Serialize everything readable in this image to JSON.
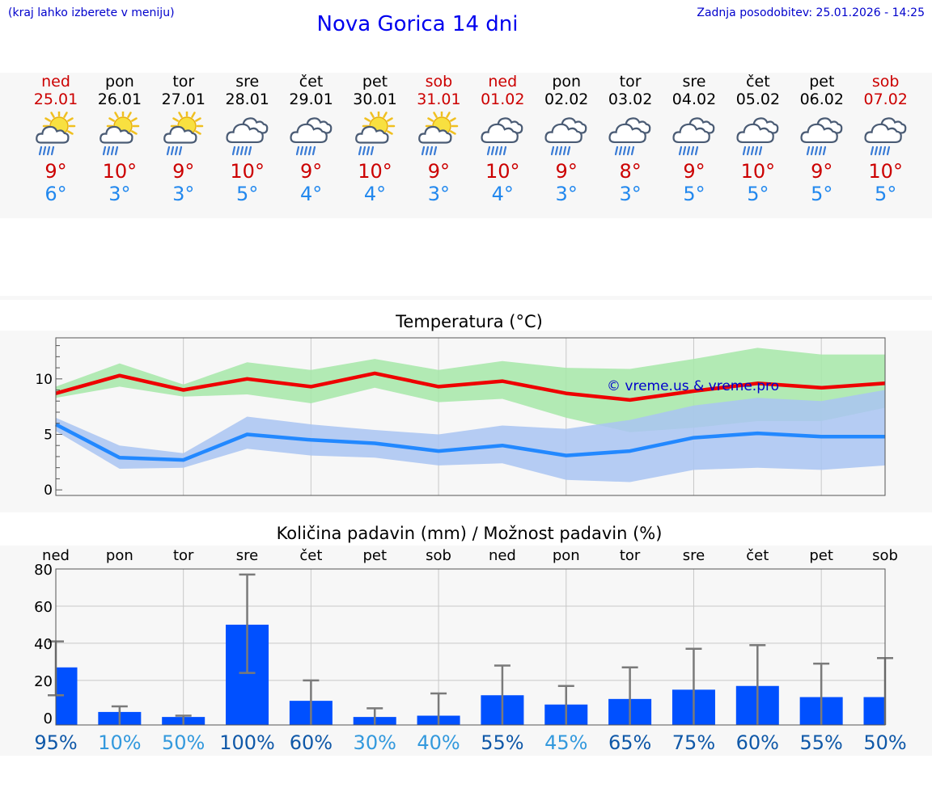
{
  "header": {
    "note": "(kraj lahko izberete v meniju)",
    "title": "Nova Gorica 14 dni",
    "updated": "Zadnja posodobitev: 25.01.2026 - 14:25"
  },
  "days": [
    {
      "name": "ned",
      "date": "25.01",
      "weekend": true,
      "icon": "sun-cloud-rain-icon",
      "tmax": "9°",
      "tmin": "6°"
    },
    {
      "name": "pon",
      "date": "26.01",
      "weekend": false,
      "icon": "sun-cloud-rain-icon",
      "tmax": "10°",
      "tmin": "3°"
    },
    {
      "name": "tor",
      "date": "27.01",
      "weekend": false,
      "icon": "sun-cloud-rain-icon",
      "tmax": "9°",
      "tmin": "3°"
    },
    {
      "name": "sre",
      "date": "28.01",
      "weekend": false,
      "icon": "rain-cloud-icon",
      "tmax": "10°",
      "tmin": "5°"
    },
    {
      "name": "čet",
      "date": "29.01",
      "weekend": false,
      "icon": "rain-cloud-icon",
      "tmax": "9°",
      "tmin": "4°"
    },
    {
      "name": "pet",
      "date": "30.01",
      "weekend": false,
      "icon": "sun-cloud-rain-icon",
      "tmax": "10°",
      "tmin": "4°"
    },
    {
      "name": "sob",
      "date": "31.01",
      "weekend": true,
      "icon": "sun-cloud-rain-icon",
      "tmax": "9°",
      "tmin": "3°"
    },
    {
      "name": "ned",
      "date": "01.02",
      "weekend": true,
      "icon": "rain-cloud-icon",
      "tmax": "10°",
      "tmin": "4°"
    },
    {
      "name": "pon",
      "date": "02.02",
      "weekend": false,
      "icon": "rain-cloud-icon",
      "tmax": "9°",
      "tmin": "3°"
    },
    {
      "name": "tor",
      "date": "03.02",
      "weekend": false,
      "icon": "rain-cloud-icon",
      "tmax": "8°",
      "tmin": "3°"
    },
    {
      "name": "sre",
      "date": "04.02",
      "weekend": false,
      "icon": "rain-cloud-icon",
      "tmax": "9°",
      "tmin": "5°"
    },
    {
      "name": "čet",
      "date": "05.02",
      "weekend": false,
      "icon": "rain-cloud-icon",
      "tmax": "10°",
      "tmin": "5°"
    },
    {
      "name": "pet",
      "date": "06.02",
      "weekend": false,
      "icon": "rain-cloud-icon",
      "tmax": "9°",
      "tmin": "5°"
    },
    {
      "name": "sob",
      "date": "07.02",
      "weekend": true,
      "icon": "rain-cloud-icon",
      "tmax": "10°",
      "tmin": "5°"
    }
  ],
  "chart_data": [
    {
      "type": "line",
      "title": "Temperatura (°C)",
      "watermark": "© vreme.us & vreme.pro",
      "ylim": [
        -0.5,
        13.7
      ],
      "yticks": [
        0,
        5,
        10
      ],
      "x": [
        0,
        1,
        2,
        3,
        4,
        5,
        6,
        7,
        8,
        9,
        10,
        11,
        12,
        13
      ],
      "series": [
        {
          "name": "max",
          "color": "#ee0000",
          "values": [
            8.7,
            10.3,
            9.0,
            10.0,
            9.3,
            10.5,
            9.3,
            9.8,
            8.7,
            8.1,
            8.9,
            9.6,
            9.2,
            9.6
          ]
        },
        {
          "name": "min",
          "color": "#2288ff",
          "values": [
            5.9,
            2.9,
            2.7,
            5.0,
            4.5,
            4.2,
            3.5,
            4.0,
            3.1,
            3.5,
            4.7,
            5.1,
            4.8,
            4.8
          ]
        }
      ],
      "bands": [
        {
          "name": "max-range",
          "color": "#a6e8a8",
          "low": [
            8.3,
            9.3,
            8.4,
            8.6,
            7.8,
            9.2,
            7.9,
            8.2,
            6.5,
            5.2,
            5.6,
            6.2,
            6.2,
            7.4
          ],
          "high": [
            9.3,
            11.4,
            9.5,
            11.5,
            10.8,
            11.8,
            10.8,
            11.6,
            11.0,
            10.9,
            11.8,
            12.8,
            12.2,
            12.2
          ]
        },
        {
          "name": "min-range",
          "color": "#a9c4f2",
          "low": [
            5.3,
            1.9,
            2.0,
            3.7,
            3.1,
            2.9,
            2.2,
            2.4,
            0.9,
            0.7,
            1.8,
            2.0,
            1.8,
            2.2
          ],
          "high": [
            6.5,
            4.0,
            3.3,
            6.6,
            5.9,
            5.4,
            5.0,
            5.8,
            5.5,
            6.3,
            7.6,
            8.3,
            8.0,
            9.0
          ]
        }
      ]
    },
    {
      "type": "bar",
      "title": "Količina padavin (mm) / Možnost padavin (%)",
      "categories": [
        "ned",
        "pon",
        "tor",
        "sre",
        "čet",
        "pet",
        "sob",
        "ned",
        "pon",
        "tor",
        "sre",
        "čet",
        "pet",
        "sob"
      ],
      "ylim": [
        -4,
        80
      ],
      "yticks": [
        0,
        20,
        40,
        60,
        80
      ],
      "values": [
        27,
        3,
        0.3,
        50,
        9,
        0.3,
        1,
        12,
        7,
        10,
        15,
        17,
        11,
        11
      ],
      "err_low": [
        12,
        0,
        0,
        24,
        0,
        0,
        0,
        0,
        0,
        0,
        0,
        0,
        0,
        0
      ],
      "err_high": [
        41,
        6,
        1,
        77,
        20,
        5,
        13,
        28,
        17,
        27,
        37,
        39,
        29,
        32
      ],
      "bar_color": "#0050ff",
      "probabilities": [
        "95%",
        "10%",
        "50%",
        "100%",
        "60%",
        "30%",
        "40%",
        "55%",
        "45%",
        "65%",
        "75%",
        "60%",
        "55%",
        "50%"
      ],
      "probability_colors": [
        "#0f58a8",
        "#3399dd",
        "#3399dd",
        "#0f58a8",
        "#0f58a8",
        "#3399dd",
        "#3399dd",
        "#0f58a8",
        "#3399dd",
        "#0f58a8",
        "#0f58a8",
        "#0f58a8",
        "#0f58a8",
        "#0f58a8"
      ]
    }
  ]
}
